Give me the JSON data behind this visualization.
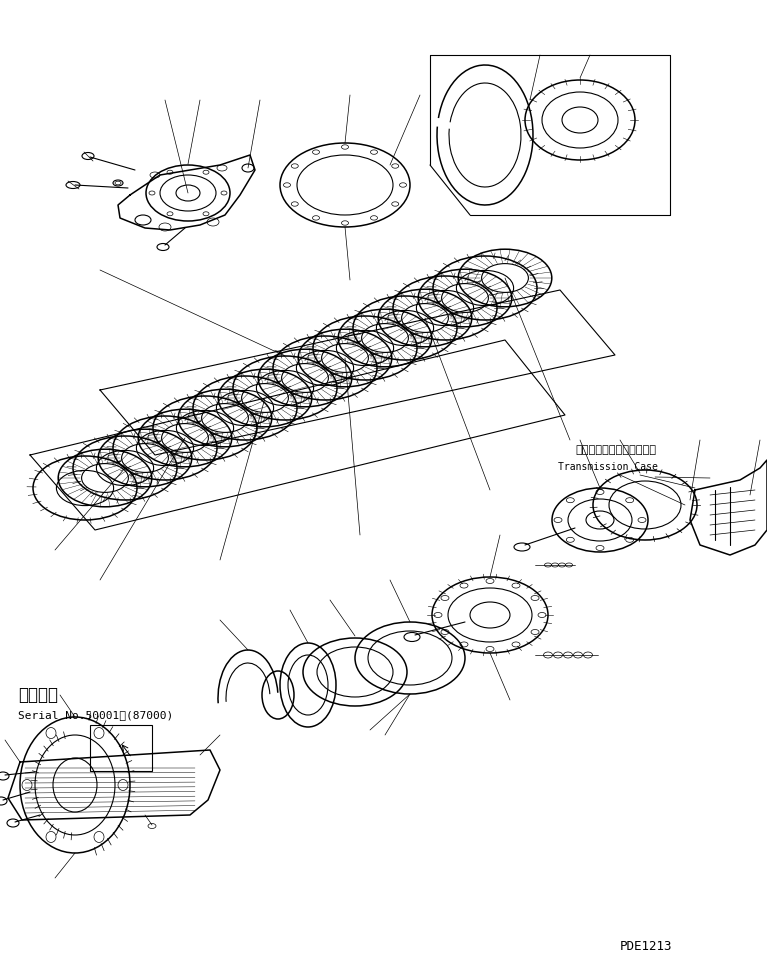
{
  "bg_color": "#ffffff",
  "line_color": "#000000",
  "text_color": "#000000",
  "fig_width": 7.67,
  "fig_height": 9.66,
  "dpi": 100,
  "label_japanese_transmission": "トランスミッションケース",
  "label_english_transmission": "Transmission Case",
  "label_applicable": "適用号機",
  "label_serial": "Serial No.50001～(87000)",
  "label_code": "PDE1213",
  "font_size_large": 11,
  "font_size_medium": 8,
  "font_size_small": 7,
  "font_size_code": 9
}
